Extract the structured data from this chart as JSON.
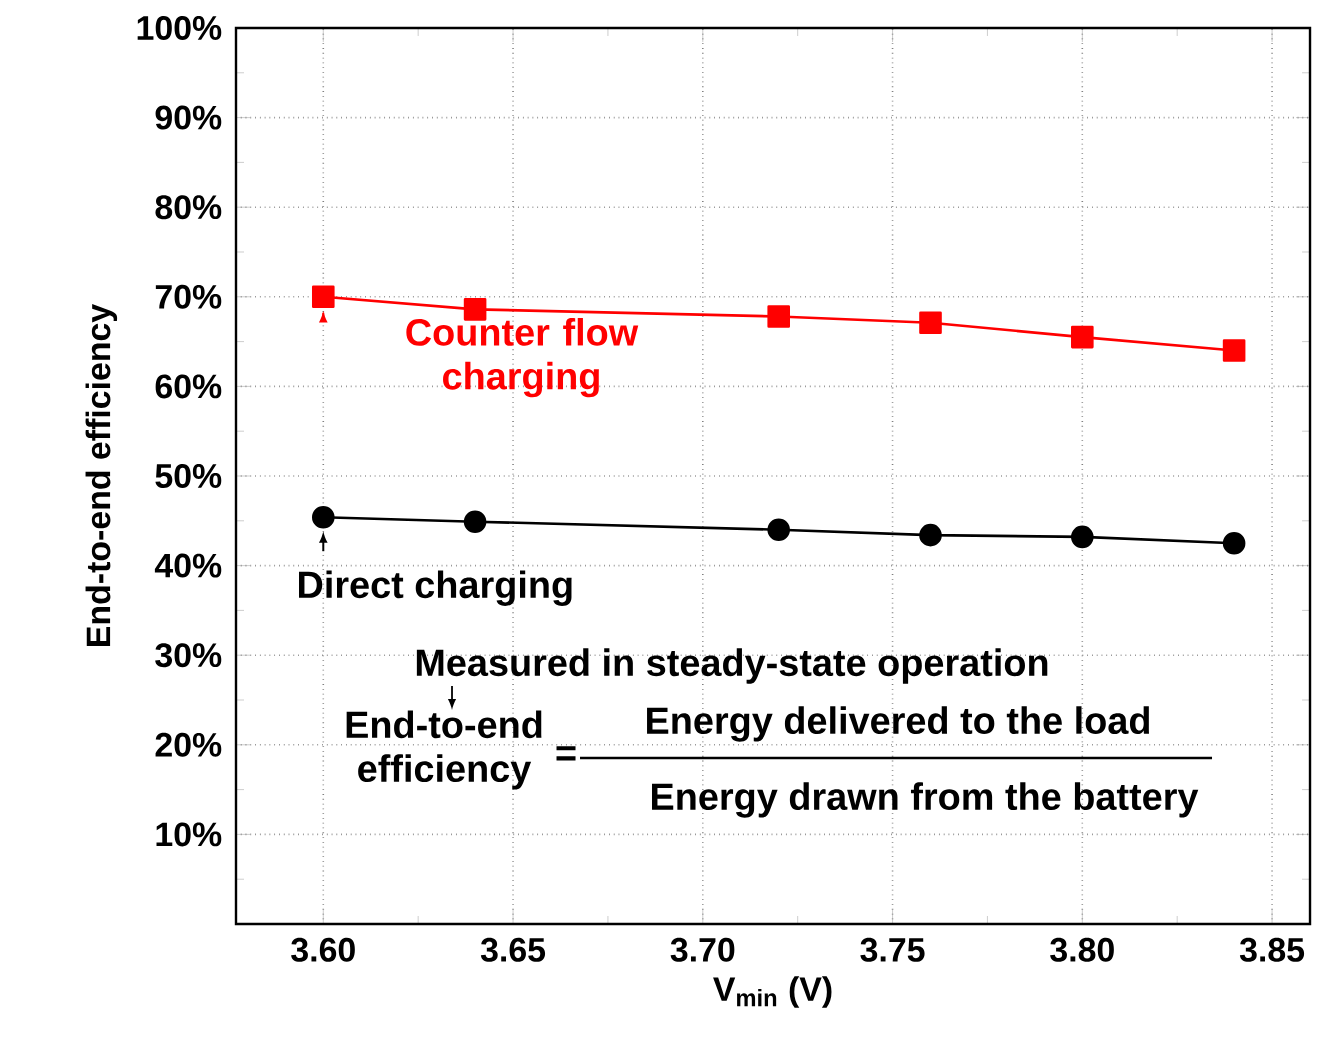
{
  "chart_data": {
    "type": "line",
    "xlabel": "V$_{min}$ (V)",
    "ylabel": "End-to-end efficiency",
    "x": [
      3.6,
      3.64,
      3.72,
      3.76,
      3.8,
      3.84
    ],
    "series": [
      {
        "name": "Counter flow charging",
        "color": "#ff0000",
        "marker": "square",
        "values": [
          70.0,
          68.6,
          67.8,
          67.1,
          65.5,
          64.0
        ]
      },
      {
        "name": "Direct charging",
        "color": "#000000",
        "marker": "circle",
        "values": [
          45.4,
          44.9,
          44.0,
          43.4,
          43.2,
          42.5
        ]
      }
    ],
    "xlim": [
      3.577,
      3.86
    ],
    "ylim": [
      0,
      100
    ],
    "xticks": [
      {
        "value": 3.6,
        "label": "3.60"
      },
      {
        "value": 3.65,
        "label": "3.65"
      },
      {
        "value": 3.7,
        "label": "3.70"
      },
      {
        "value": 3.75,
        "label": "3.75"
      },
      {
        "value": 3.8,
        "label": "3.80"
      },
      {
        "value": 3.85,
        "label": "3.85"
      }
    ],
    "yticks": [
      {
        "value": 0,
        "label": null
      },
      {
        "value": 10,
        "label": "10%"
      },
      {
        "value": 20,
        "label": "20%"
      },
      {
        "value": 30,
        "label": "30%"
      },
      {
        "value": 40,
        "label": "40%"
      },
      {
        "value": 50,
        "label": "50%"
      },
      {
        "value": 60,
        "label": "60%"
      },
      {
        "value": 70,
        "label": "70%"
      },
      {
        "value": 80,
        "label": "80%"
      },
      {
        "value": 90,
        "label": "90%"
      },
      {
        "value": 100,
        "label": "100%"
      }
    ],
    "grid": true,
    "line_style": "solid",
    "annotations": [
      "Measured in steady-state operation",
      "End-to-end efficiency",
      "=",
      "Energy delivered to the load",
      "Energy drawn from the battery"
    ]
  }
}
